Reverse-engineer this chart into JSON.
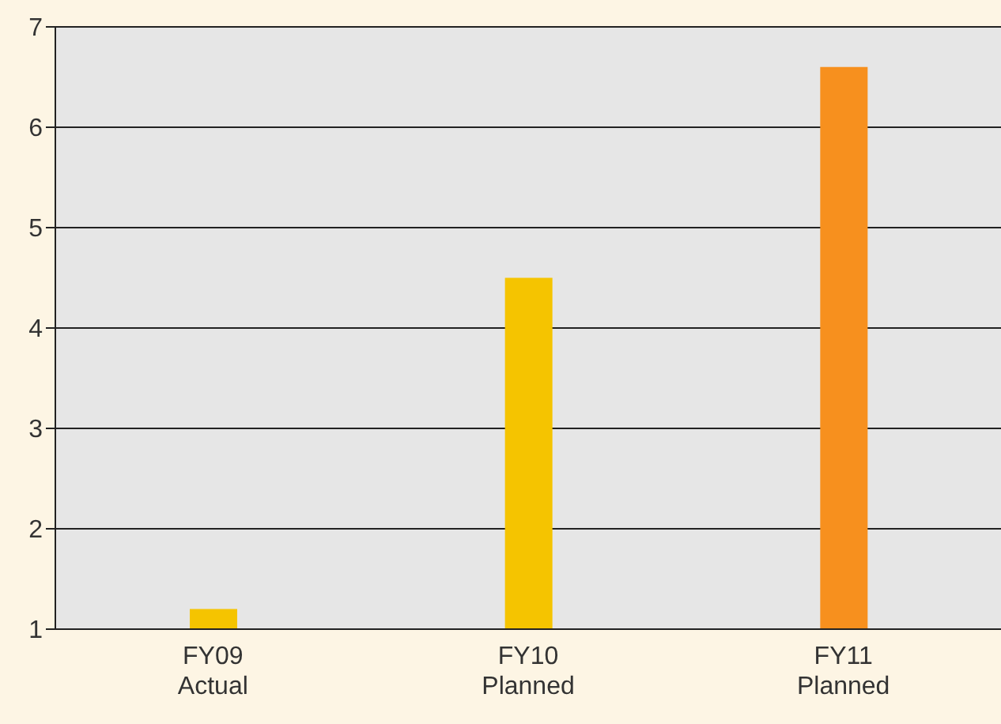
{
  "chart_data": {
    "type": "bar",
    "categories": [
      "FY09\nActual",
      "FY10\nPlanned",
      "FY11\nPlanned"
    ],
    "values": [
      1.2,
      4.5,
      6.6
    ],
    "colors": [
      "#f5c400",
      "#f5c400",
      "#f7901e"
    ],
    "ylim": [
      1,
      7
    ],
    "yticks": [
      1,
      2,
      3,
      4,
      5,
      6,
      7
    ],
    "grid": "y"
  }
}
